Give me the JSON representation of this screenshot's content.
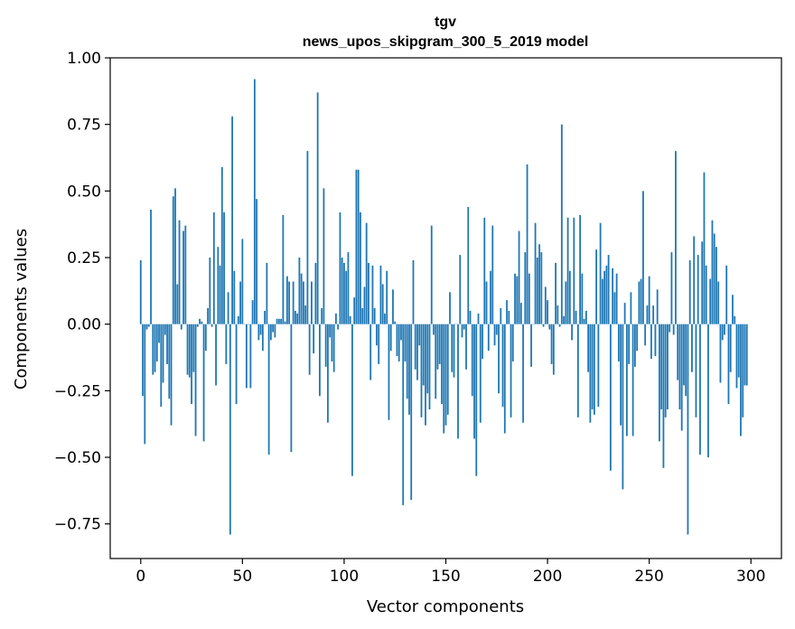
{
  "chart_data": {
    "type": "bar",
    "title": "tgv",
    "subtitle": "news_upos_skipgram_300_5_2019 model",
    "xlabel": "Vector components",
    "ylabel": "Components values",
    "xlim": [
      -15,
      315
    ],
    "ylim": [
      -0.88,
      1.0
    ],
    "xticks": [
      0,
      50,
      100,
      150,
      200,
      250,
      300
    ],
    "xtick_labels": [
      "0",
      "50",
      "100",
      "150",
      "200",
      "250",
      "300"
    ],
    "yticks": [
      -0.75,
      -0.5,
      -0.25,
      0.0,
      0.25,
      0.5,
      0.75,
      1.0
    ],
    "ytick_labels": [
      "−0.75",
      "−0.50",
      "−0.25",
      "0.00",
      "0.25",
      "0.50",
      "0.75",
      "1.00"
    ],
    "bar_color": "#1f77b4",
    "values": [
      0.24,
      -0.27,
      -0.45,
      -0.02,
      -0.01,
      0.43,
      -0.19,
      -0.18,
      -0.14,
      -0.07,
      -0.31,
      -0.22,
      -0.04,
      -0.15,
      -0.28,
      -0.38,
      0.48,
      0.51,
      0.15,
      0.39,
      -0.02,
      0.35,
      0.37,
      -0.19,
      -0.2,
      -0.3,
      -0.18,
      -0.42,
      -0.01,
      0.02,
      0.01,
      -0.44,
      -0.1,
      0.06,
      0.25,
      -0.01,
      0.42,
      -0.23,
      0.29,
      0.22,
      0.59,
      0.42,
      -0.15,
      0.12,
      -0.79,
      0.78,
      0.2,
      -0.3,
      0.03,
      0.16,
      0.32,
      0.0,
      -0.24,
      0.0,
      -0.24,
      0.09,
      0.92,
      0.47,
      -0.06,
      -0.04,
      -0.1,
      0.05,
      0.23,
      -0.49,
      -0.06,
      -0.03,
      -0.05,
      0.02,
      0.02,
      0.02,
      0.41,
      0.01,
      0.18,
      0.16,
      -0.48,
      0.16,
      0.05,
      0.04,
      0.25,
      0.19,
      0.16,
      0.07,
      0.65,
      -0.19,
      0.16,
      -0.11,
      0.23,
      0.87,
      -0.27,
      0.06,
      0.51,
      -0.16,
      -0.37,
      -0.05,
      -0.14,
      -0.18,
      0.04,
      -0.02,
      0.42,
      0.25,
      0.23,
      0.2,
      0.27,
      0.03,
      -0.57,
      0.1,
      0.58,
      0.58,
      0.42,
      0.06,
      0.14,
      0.38,
      0.23,
      -0.21,
      0.22,
      0.06,
      -0.08,
      -0.15,
      0.22,
      0.15,
      0.04,
      0.2,
      -0.36,
      -0.1,
      0.13,
      0.01,
      -0.12,
      -0.14,
      -0.06,
      -0.68,
      -0.14,
      -0.28,
      -0.34,
      -0.66,
      0.24,
      -0.17,
      -0.21,
      -0.08,
      -0.35,
      -0.23,
      -0.38,
      -0.26,
      -0.32,
      0.37,
      -0.04,
      -0.28,
      -0.17,
      -0.15,
      -0.3,
      -0.41,
      -0.38,
      -0.34,
      0.12,
      -0.18,
      -0.2,
      0.0,
      -0.43,
      0.26,
      -0.05,
      -0.02,
      -0.17,
      0.44,
      0.05,
      -0.27,
      -0.43,
      -0.57,
      0.04,
      -0.37,
      -0.13,
      0.4,
      0.16,
      -0.1,
      0.2,
      0.37,
      -0.08,
      -0.04,
      -0.26,
      0.06,
      -0.31,
      -0.41,
      0.09,
      0.05,
      -0.35,
      -0.14,
      0.19,
      0.18,
      0.35,
      0.08,
      -0.37,
      0.27,
      0.6,
      0.19,
      -0.16,
      0.0,
      0.38,
      0.25,
      0.3,
      0.27,
      -0.01,
      0.14,
      0.09,
      -0.02,
      -0.15,
      -0.19,
      0.23,
      0.07,
      -0.01,
      0.75,
      0.03,
      0.16,
      0.4,
      0.2,
      -0.06,
      0.4,
      0.05,
      -0.35,
      0.41,
      0.19,
      0.02,
      0.05,
      -0.18,
      -0.37,
      -0.32,
      -0.34,
      0.28,
      -0.31,
      0.38,
      0.17,
      0.2,
      0.22,
      0.26,
      -0.55,
      0.21,
      0.12,
      0.19,
      -0.14,
      -0.38,
      -0.62,
      0.08,
      -0.42,
      -0.15,
      0.12,
      -0.42,
      -0.16,
      -0.1,
      0.16,
      0.17,
      0.5,
      -0.08,
      0.07,
      0.18,
      -0.13,
      0.07,
      -0.12,
      0.13,
      -0.44,
      -0.32,
      -0.54,
      -0.35,
      -0.32,
      -0.03,
      0.27,
      -0.04,
      0.65,
      -0.21,
      -0.32,
      -0.4,
      -0.23,
      -0.27,
      -0.79,
      0.24,
      -0.18,
      0.33,
      -0.35,
      0.26,
      -0.49,
      0.31,
      0.57,
      0.22,
      -0.5,
      0.17,
      0.39,
      0.34,
      0.29,
      0.16,
      -0.22,
      -0.06,
      -0.04,
      0.22,
      -0.3,
      -0.18,
      0.11,
      0.03,
      -0.24,
      -0.2,
      -0.42,
      -0.35,
      -0.23,
      -0.23
    ]
  }
}
